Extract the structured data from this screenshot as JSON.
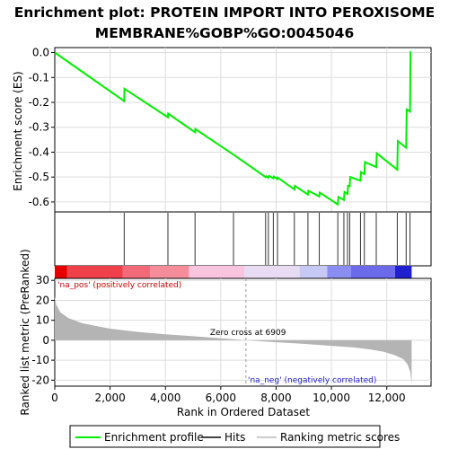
{
  "chart_data": {
    "type": "line",
    "title_line1": "Enrichment plot: PROTEIN IMPORT INTO PEROXISOME",
    "title_line2": "MEMBRANE%GOBP%GO:0045046",
    "n_genes": 12900,
    "es_panel": {
      "ylabel": "Enrichment score (ES)",
      "ylim": [
        -0.64,
        0.02
      ],
      "yticks": [
        0.0,
        -0.1,
        -0.2,
        -0.3,
        -0.4,
        -0.5,
        -0.6
      ],
      "ytick_labels": [
        "0.0",
        "-0.1",
        "-0.2",
        "-0.3",
        "-0.4",
        "-0.5",
        "-0.6"
      ],
      "series_name": "Enrichment profile",
      "color": "#00ee00",
      "points": [
        [
          0,
          0.0
        ],
        [
          2510,
          -0.195
        ],
        [
          2520,
          -0.145
        ],
        [
          4090,
          -0.26
        ],
        [
          4100,
          -0.245
        ],
        [
          5070,
          -0.32
        ],
        [
          5080,
          -0.307
        ],
        [
          6460,
          -0.41
        ],
        [
          7620,
          -0.5
        ],
        [
          7640,
          -0.497
        ],
        [
          7720,
          -0.503
        ],
        [
          7740,
          -0.495
        ],
        [
          7900,
          -0.505
        ],
        [
          7920,
          -0.498
        ],
        [
          8050,
          -0.508
        ],
        [
          8060,
          -0.502
        ],
        [
          8660,
          -0.55
        ],
        [
          8680,
          -0.535
        ],
        [
          9150,
          -0.57
        ],
        [
          9170,
          -0.555
        ],
        [
          9560,
          -0.578
        ],
        [
          9580,
          -0.562
        ],
        [
          10230,
          -0.61
        ],
        [
          10250,
          -0.58
        ],
        [
          10450,
          -0.592
        ],
        [
          10470,
          -0.56
        ],
        [
          10580,
          -0.568
        ],
        [
          10600,
          -0.535
        ],
        [
          10660,
          -0.537
        ],
        [
          10680,
          -0.5
        ],
        [
          11050,
          -0.515
        ],
        [
          11070,
          -0.48
        ],
        [
          11190,
          -0.488
        ],
        [
          11210,
          -0.44
        ],
        [
          11620,
          -0.46
        ],
        [
          11640,
          -0.405
        ],
        [
          12380,
          -0.47
        ],
        [
          12400,
          -0.355
        ],
        [
          12700,
          -0.382
        ],
        [
          12720,
          -0.228
        ],
        [
          12840,
          -0.237
        ],
        [
          12860,
          0.003
        ],
        [
          12870,
          0.003
        ]
      ]
    },
    "hits": {
      "legend_label": "Hits",
      "positions": [
        2510,
        4090,
        5070,
        6460,
        7620,
        7720,
        7900,
        8050,
        8660,
        9150,
        9560,
        10230,
        10450,
        10580,
        10660,
        11050,
        11190,
        11620,
        12380,
        12700,
        12840
      ]
    },
    "ranked_metric": {
      "legend_label": "Ranking metric scores",
      "ylabel": "Ranked list metric (PreRanked)",
      "ylim": [
        -23,
        31
      ],
      "yticks": [
        30,
        20,
        10,
        0,
        -10,
        -20
      ],
      "ytick_labels": [
        "30",
        "20",
        "10",
        "0",
        "-10",
        "-20"
      ],
      "profile": [
        [
          0,
          22
        ],
        [
          50,
          18
        ],
        [
          200,
          14
        ],
        [
          500,
          11
        ],
        [
          1000,
          8.5
        ],
        [
          2000,
          5.8
        ],
        [
          3000,
          4.2
        ],
        [
          4000,
          3.0
        ],
        [
          5000,
          2.0
        ],
        [
          6000,
          1.0
        ],
        [
          6909,
          0.0
        ],
        [
          8000,
          -1.0
        ],
        [
          9000,
          -1.8
        ],
        [
          10000,
          -2.8
        ],
        [
          10800,
          -3.6
        ],
        [
          11400,
          -4.6
        ],
        [
          11900,
          -5.8
        ],
        [
          12300,
          -7.5
        ],
        [
          12600,
          -9.5
        ],
        [
          12750,
          -12.0
        ],
        [
          12850,
          -16.0
        ],
        [
          12900,
          -22.0
        ]
      ],
      "pos_label": "'na_pos' (positively correlated)",
      "neg_label": "'na_neg' (negatively correlated)",
      "zero_cross_label": "Zero cross at 6909",
      "zero_cross": 6909
    },
    "xaxis": {
      "xlabel": "Rank in Ordered Dataset",
      "xlim": [
        0,
        13600
      ],
      "xticks": [
        0,
        2000,
        4000,
        6000,
        8000,
        10000,
        12000
      ],
      "xtick_labels": [
        "0",
        "2,000",
        "4,000",
        "6,000",
        "8,000",
        "10,000",
        "12,000"
      ]
    },
    "color_bar": {
      "segments": [
        {
          "from": 0,
          "to": 450,
          "color": "#e60000"
        },
        {
          "from": 450,
          "to": 2450,
          "color": "#f0404a"
        },
        {
          "from": 2450,
          "to": 3450,
          "color": "#f26a7a"
        },
        {
          "from": 3450,
          "to": 4850,
          "color": "#f48c9a"
        },
        {
          "from": 4850,
          "to": 6850,
          "color": "#f8c4e0"
        },
        {
          "from": 6850,
          "to": 8850,
          "color": "#e8dcf4"
        },
        {
          "from": 8850,
          "to": 9850,
          "color": "#c8c8f4"
        },
        {
          "from": 9850,
          "to": 10700,
          "color": "#8a8ef0"
        },
        {
          "from": 10700,
          "to": 12300,
          "color": "#6a6aea"
        },
        {
          "from": 12300,
          "to": 12900,
          "color": "#2020d0"
        }
      ]
    }
  },
  "legend": {
    "enrichment_label": "Enrichment profile",
    "hits_label": "Hits",
    "ranking_label": "Ranking metric scores"
  }
}
